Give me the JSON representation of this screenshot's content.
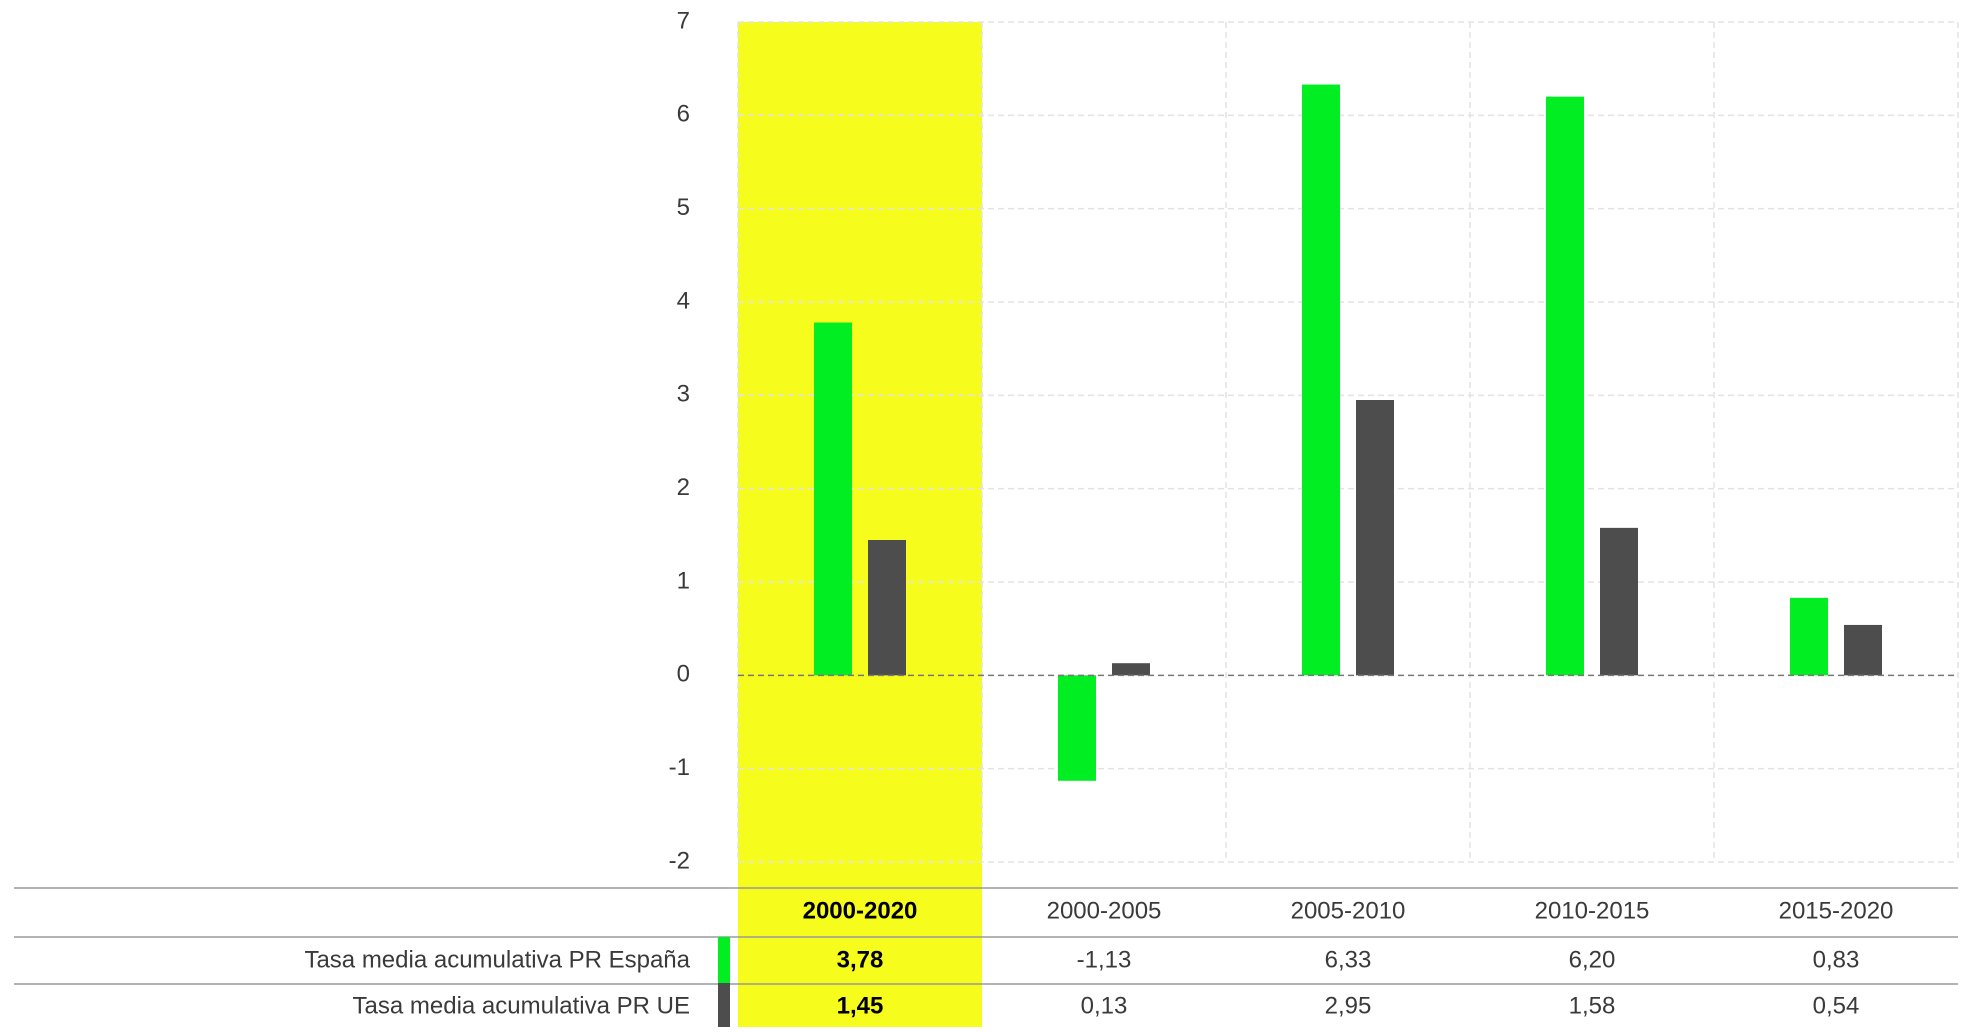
{
  "colors": {
    "spain": "#00ee22",
    "eu": "#4d4d4d",
    "highlight": "#f6fc1c",
    "grid": "#e3e3e3",
    "zero_line": "#777777",
    "rule": "#9a9a9a"
  },
  "chart_data": {
    "type": "bar",
    "categories": [
      "2000-2020",
      "2000-2005",
      "2005-2010",
      "2010-2015",
      "2015-2020"
    ],
    "highlighted_category": "2000-2020",
    "series": [
      {
        "name": "Tasa media acumulativa PR España",
        "color": "#00ee22",
        "values": [
          3.78,
          -1.13,
          6.33,
          6.2,
          0.83
        ],
        "labels": [
          "3,78",
          "-1,13",
          "6,33",
          "6,20",
          "0,83"
        ]
      },
      {
        "name": "Tasa media acumulativa PR UE",
        "color": "#4d4d4d",
        "values": [
          1.45,
          0.13,
          2.95,
          1.58,
          0.54
        ],
        "labels": [
          "1,45",
          "0,13",
          "2,95",
          "1,58",
          "0,54"
        ]
      }
    ],
    "ylim": [
      -2,
      7
    ],
    "yticks": [
      -2,
      -1,
      0,
      1,
      2,
      3,
      4,
      5,
      6,
      7
    ],
    "ytick_labels": [
      "-2",
      "-1",
      "0",
      "1",
      "2",
      "3",
      "4",
      "5",
      "6",
      "7"
    ],
    "grid": true,
    "legend": "data-table below chart"
  }
}
